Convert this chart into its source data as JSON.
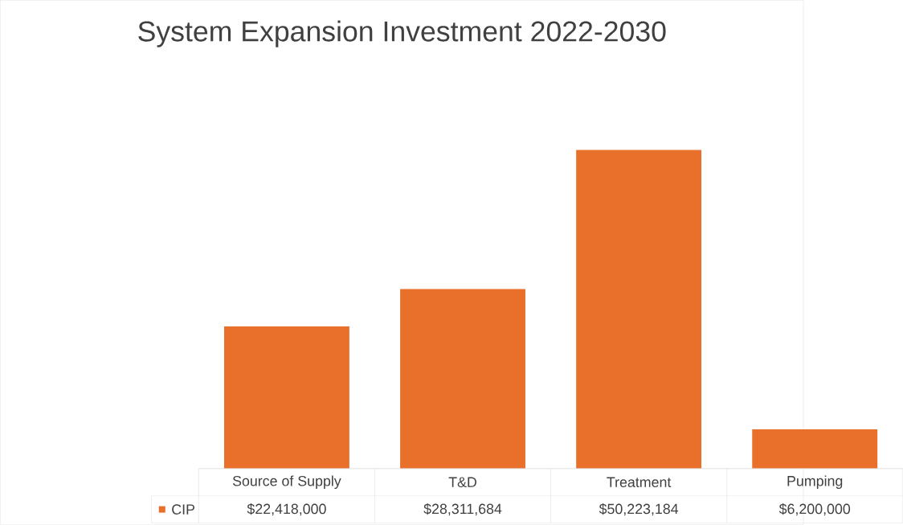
{
  "chart_data": {
    "type": "bar",
    "title": "System Expansion Investment 2022-2030",
    "categories": [
      "Source of Supply",
      "T&D",
      "Treatment",
      "Pumping"
    ],
    "series": [
      {
        "name": "CIP",
        "color": "#e8702a",
        "values": [
          22418000,
          28311684,
          50223184,
          6200000
        ],
        "value_labels": [
          "$22,418,000",
          "$28,311,684",
          "$50,223,184",
          "$6,200,000"
        ]
      }
    ],
    "relative": false
  }
}
